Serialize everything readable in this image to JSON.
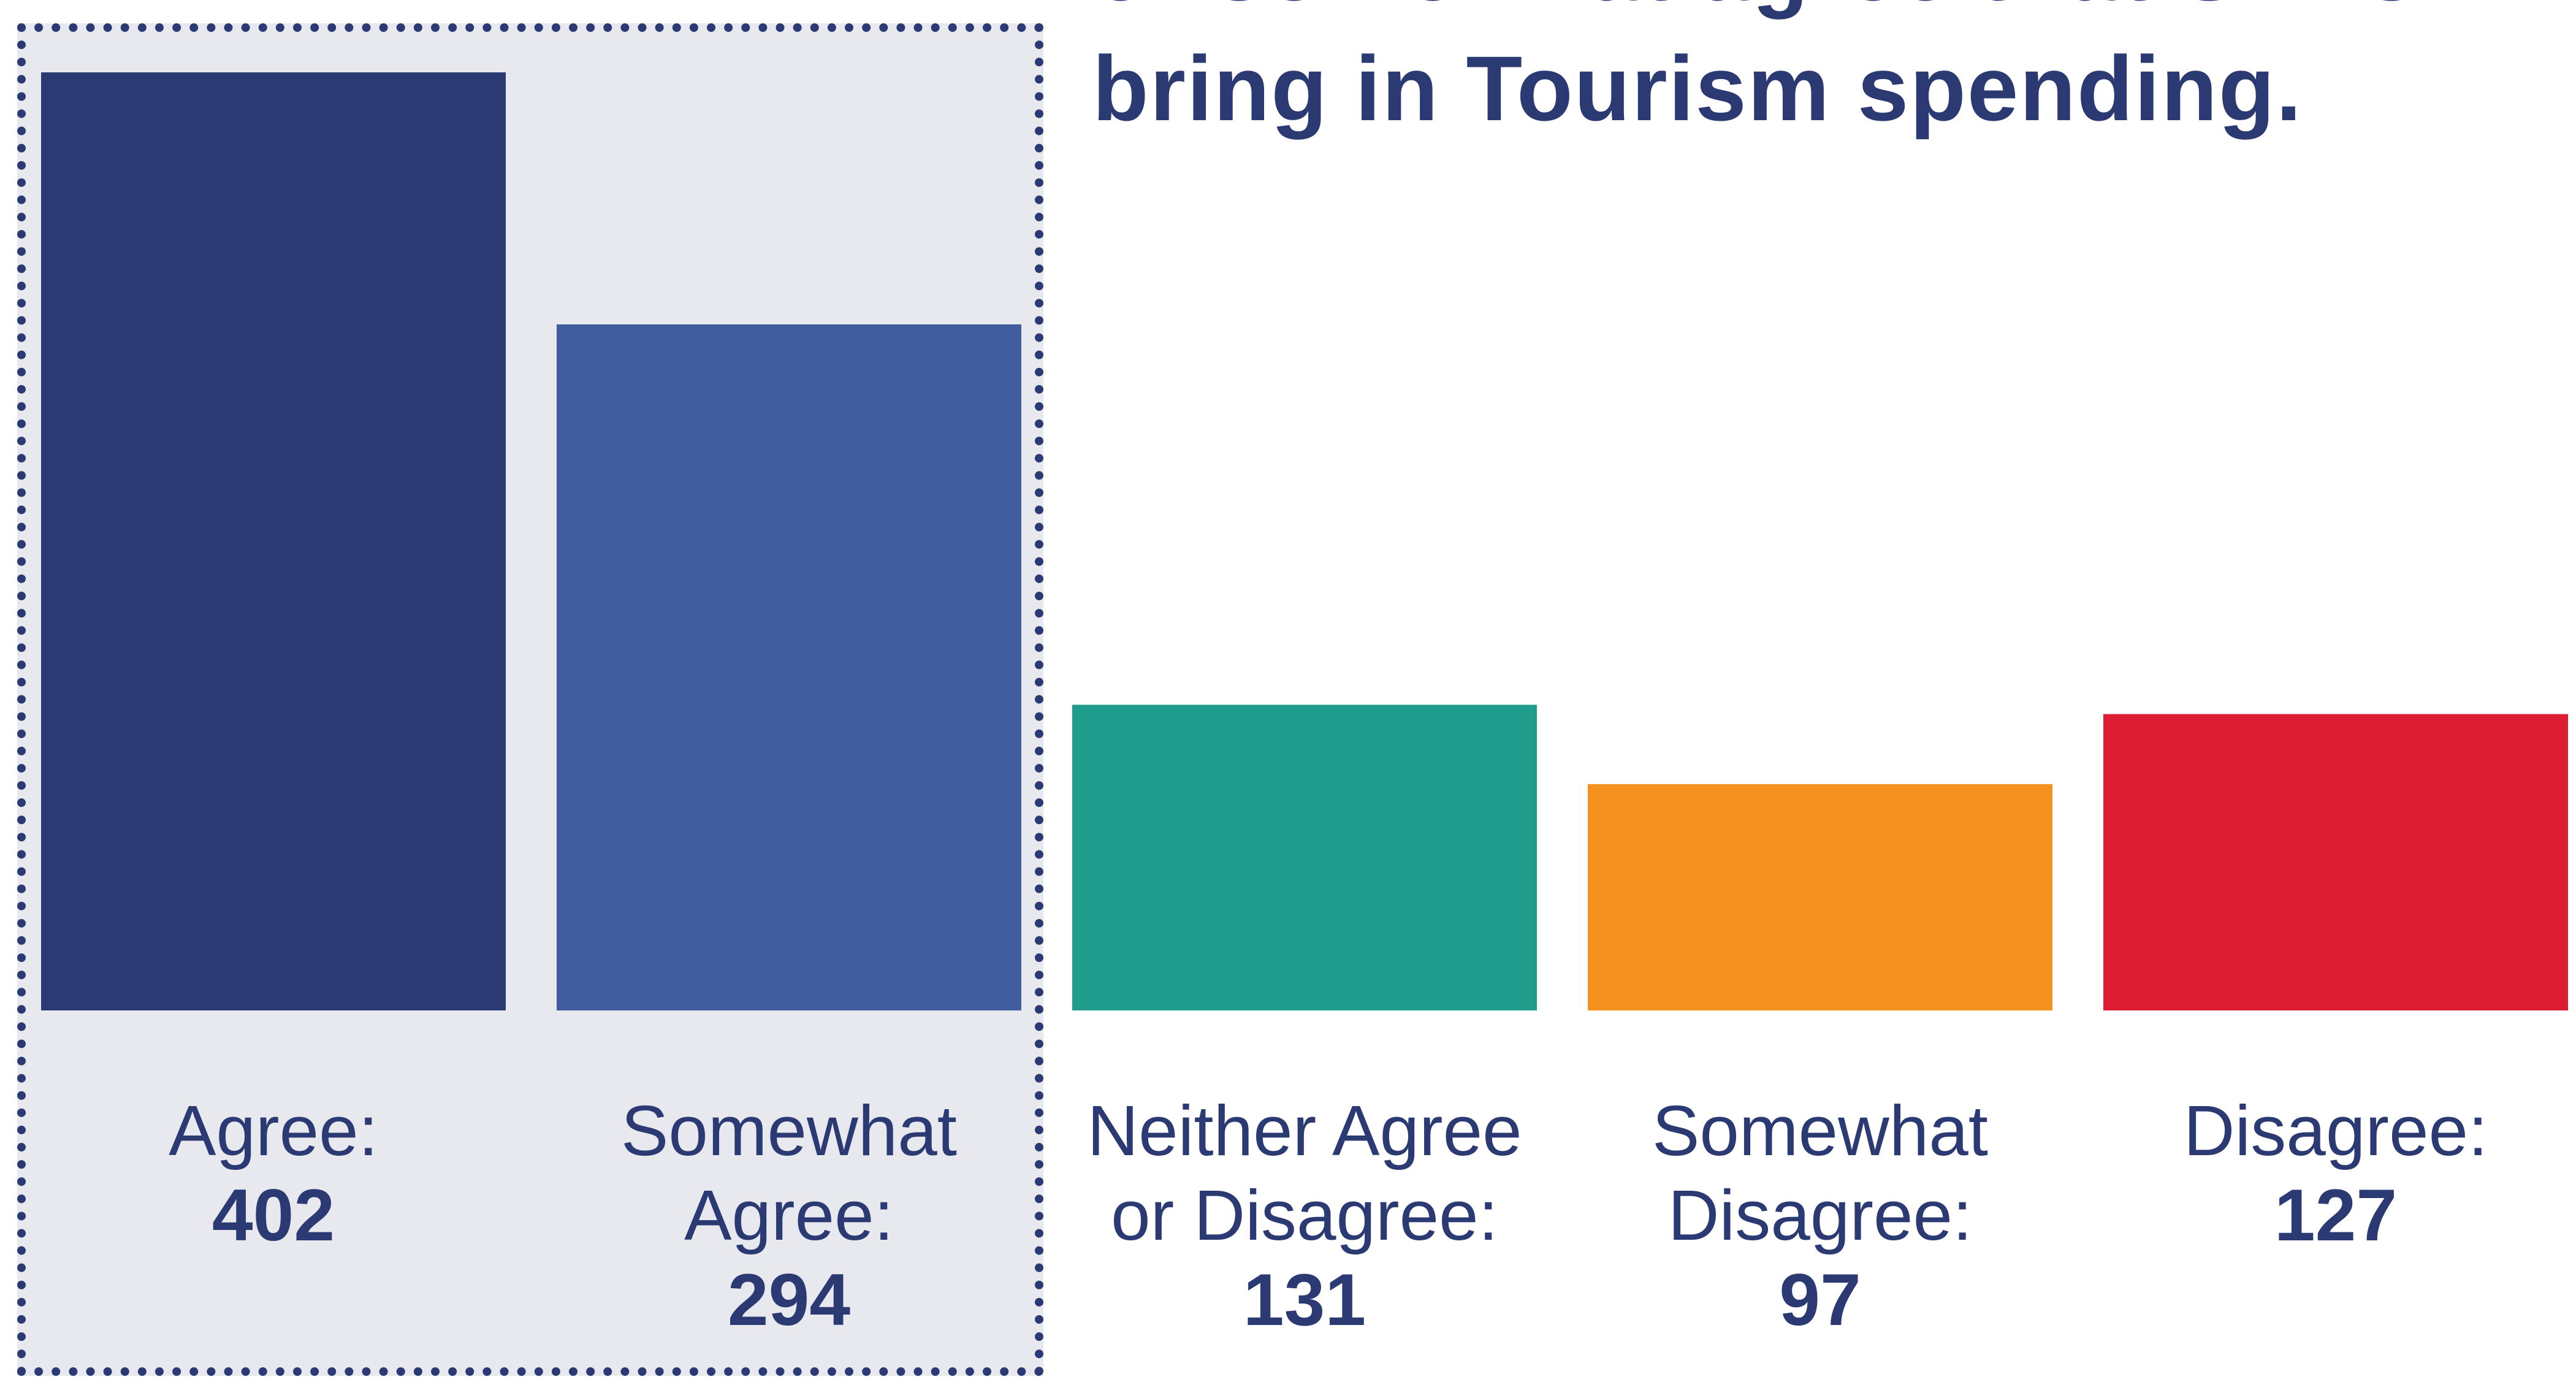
{
  "headline": {
    "lines": [
      "or somewhat agree that STRs",
      "bring in Tourism spending."
    ]
  },
  "chart_data": {
    "type": "bar",
    "categories": [
      "Agree:",
      "Somewhat Agree:",
      "Neither Agree or Disagree:",
      "Somewhat Disagree:",
      "Disagree:"
    ],
    "category_lines": [
      [
        "Agree:"
      ],
      [
        "Somewhat",
        "Agree:"
      ],
      [
        "Neither Agree",
        "or Disagree:"
      ],
      [
        "Somewhat",
        "Disagree:"
      ],
      [
        "Disagree:"
      ]
    ],
    "values": [
      402,
      294,
      131,
      97,
      127
    ],
    "value_labels": [
      "402",
      "294",
      "131",
      "97",
      "127"
    ],
    "colors": [
      "#2c3a74",
      "#415c9f",
      "#1f9c8c",
      "#f5921f",
      "#dd1d33"
    ],
    "highlighted_categories": [
      "Agree:",
      "Somewhat Agree:"
    ],
    "highlight_fill": "#e8e8ef",
    "highlight_border": "#2c3a74",
    "text_color": "#2c3a74",
    "ylim": [
      0,
      402
    ],
    "grid": false,
    "axes_visible": false,
    "xlabel": "",
    "ylabel": ""
  }
}
